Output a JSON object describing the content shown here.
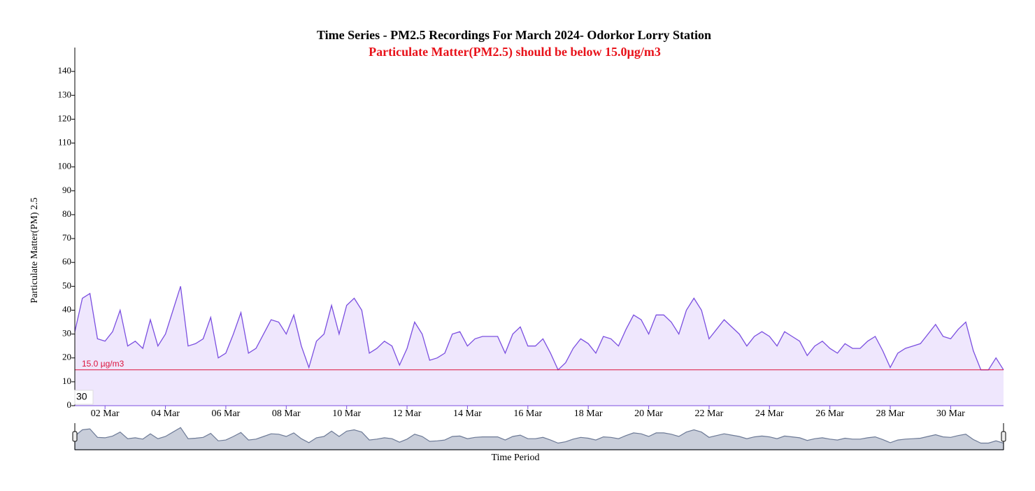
{
  "chart_data": {
    "type": "area",
    "title": "Time Series - PM2.5 Recordings For March 2024- Odorkor Lorry Station",
    "subtitle": "Particulate Matter(PM2.5) should be below 15.0µg/m3",
    "y_label": "Particulate Matter(PM) 2.5",
    "x_label": "Time Period",
    "corner_label": "30",
    "color": "#7b4fe0",
    "fill_color": "#efe7fd",
    "threshold": 15,
    "threshold_label": "15.0 µg/m3",
    "threshold_color": "#dc143c",
    "x": [
      1,
      1.25,
      1.5,
      1.75,
      2,
      2.25,
      2.5,
      2.75,
      3,
      3.25,
      3.5,
      3.75,
      4,
      4.25,
      4.5,
      4.75,
      5,
      5.25,
      5.5,
      5.75,
      6,
      6.25,
      6.5,
      6.75,
      7,
      7.25,
      7.5,
      7.75,
      8,
      8.25,
      8.5,
      8.75,
      9,
      9.25,
      9.5,
      9.75,
      10,
      10.25,
      10.5,
      10.75,
      11,
      11.25,
      11.5,
      11.75,
      12,
      12.25,
      12.5,
      12.75,
      13,
      13.25,
      13.5,
      13.75,
      14,
      14.25,
      14.5,
      14.75,
      15,
      15.25,
      15.5,
      15.75,
      16,
      16.25,
      16.5,
      16.75,
      17,
      17.25,
      17.5,
      17.75,
      18,
      18.25,
      18.5,
      18.75,
      19,
      19.25,
      19.5,
      19.75,
      20,
      20.25,
      20.5,
      20.75,
      21,
      21.25,
      21.5,
      21.75,
      22,
      22.25,
      22.5,
      22.75,
      23,
      23.25,
      23.5,
      23.75,
      24,
      24.25,
      24.5,
      24.75,
      25,
      25.25,
      25.5,
      25.75,
      26,
      26.25,
      26.5,
      26.75,
      27,
      27.25,
      27.5,
      27.75,
      28,
      28.25,
      28.5,
      28.75,
      29,
      29.25,
      29.5,
      29.75,
      30,
      30.25,
      30.5,
      30.75,
      31,
      31.25,
      31.5,
      31.75
    ],
    "values": [
      31,
      45,
      47,
      28,
      27,
      31,
      40,
      25,
      27,
      24,
      36,
      25,
      30,
      40,
      50,
      25,
      26,
      28,
      37,
      20,
      22,
      30,
      39,
      22,
      24,
      30,
      36,
      35,
      30,
      38,
      25,
      16,
      27,
      30,
      42,
      30,
      42,
      45,
      40,
      22,
      24,
      27,
      25,
      17,
      24,
      35,
      30,
      19,
      20,
      22,
      30,
      31,
      25,
      28,
      29,
      29,
      29,
      22,
      30,
      33,
      25,
      25,
      28,
      22,
      15,
      18,
      24,
      28,
      26,
      22,
      29,
      28,
      25,
      32,
      38,
      36,
      30,
      38,
      38,
      35,
      30,
      40,
      45,
      40,
      28,
      32,
      36,
      33,
      30,
      25,
      29,
      31,
      29,
      25,
      31,
      29,
      27,
      21,
      25,
      27,
      24,
      22,
      26,
      24,
      24,
      27,
      29,
      23,
      16,
      22,
      24,
      25,
      26,
      30,
      34,
      29,
      28,
      32,
      35,
      23,
      15,
      15,
      20,
      15
    ],
    "xlim": [
      1,
      31.75
    ],
    "ylim": [
      0,
      150
    ],
    "yticks": [
      0,
      10,
      20,
      30,
      40,
      50,
      60,
      70,
      80,
      90,
      100,
      110,
      120,
      130,
      140
    ],
    "xticks": [
      {
        "value": 2,
        "label": "02 Mar"
      },
      {
        "value": 4,
        "label": "04 Mar"
      },
      {
        "value": 6,
        "label": "06 Mar"
      },
      {
        "value": 8,
        "label": "08 Mar"
      },
      {
        "value": 10,
        "label": "10 Mar"
      },
      {
        "value": 12,
        "label": "12 Mar"
      },
      {
        "value": 14,
        "label": "14 Mar"
      },
      {
        "value": 16,
        "label": "16 Mar"
      },
      {
        "value": 18,
        "label": "18 Mar"
      },
      {
        "value": 20,
        "label": "20 Mar"
      },
      {
        "value": 22,
        "label": "22 Mar"
      },
      {
        "value": 24,
        "label": "24 Mar"
      },
      {
        "value": 26,
        "label": "26 Mar"
      },
      {
        "value": 28,
        "label": "28 Mar"
      },
      {
        "value": 30,
        "label": "30 Mar"
      }
    ]
  }
}
